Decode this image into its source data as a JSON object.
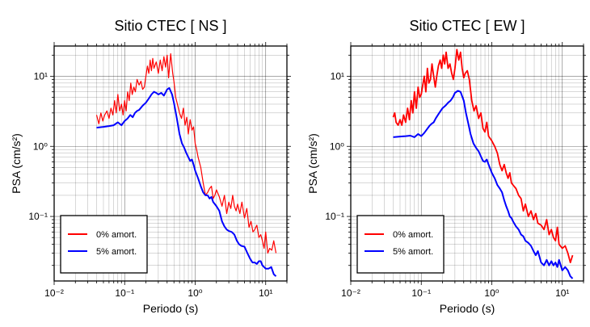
{
  "chart_data": [
    {
      "type": "line",
      "title": "Sitio CTEC [ NS ]",
      "xlabel": "Periodo (s)",
      "ylabel": "PSA (cm/s²)",
      "x_scale": "log",
      "y_scale": "log",
      "xlim": [
        0.01,
        20
      ],
      "ylim": [
        0.012,
        27
      ],
      "grid": true,
      "legend_position": "bottom-left",
      "x_tick_labels": [
        "10⁻²",
        "10⁻¹",
        "10⁰",
        "10¹"
      ],
      "y_tick_labels": [
        "10⁻¹",
        "10⁰",
        "10¹"
      ],
      "series": [
        {
          "name": "0% amort.",
          "color": "#ff0000",
          "x": [
            0.04,
            0.043,
            0.046,
            0.049,
            0.052,
            0.056,
            0.06,
            0.064,
            0.068,
            0.072,
            0.076,
            0.08,
            0.085,
            0.09,
            0.095,
            0.1,
            0.105,
            0.11,
            0.116,
            0.122,
            0.128,
            0.135,
            0.142,
            0.15,
            0.16,
            0.17,
            0.18,
            0.19,
            0.2,
            0.21,
            0.22,
            0.23,
            0.24,
            0.25,
            0.26,
            0.28,
            0.3,
            0.32,
            0.34,
            0.36,
            0.38,
            0.4,
            0.42,
            0.45,
            0.48,
            0.5,
            0.53,
            0.56,
            0.6,
            0.64,
            0.68,
            0.72,
            0.76,
            0.8,
            0.85,
            0.9,
            0.95,
            1.0,
            1.05,
            1.1,
            1.2,
            1.3,
            1.4,
            1.5,
            1.6,
            1.7,
            1.8,
            1.9,
            2.0,
            2.2,
            2.4,
            2.6,
            2.8,
            3.0,
            3.2,
            3.4,
            3.6,
            3.8,
            4.0,
            4.3,
            4.6,
            5.0,
            5.4,
            5.8,
            6.2,
            6.6,
            7.0,
            7.5,
            8.0,
            8.5,
            9.0,
            9.5,
            10.0,
            10.7,
            11.4,
            12.2,
            13.0,
            14.0
          ],
          "y": [
            2.8,
            2.1,
            3.0,
            2.3,
            2.8,
            3.2,
            2.5,
            3.5,
            2.8,
            4.5,
            3.0,
            5.5,
            3.2,
            4.0,
            2.8,
            4.5,
            3.2,
            6.0,
            4.5,
            8.0,
            5.5,
            7.0,
            6.0,
            9.0,
            7.5,
            8.5,
            6.5,
            7.0,
            10.0,
            14.0,
            11.0,
            17.0,
            12.0,
            18.0,
            13.0,
            16.0,
            11.0,
            17.0,
            12.0,
            19.0,
            13.5,
            20.0,
            9.5,
            21.0,
            11.0,
            8.5,
            5.0,
            4.0,
            3.0,
            2.5,
            3.5,
            2.0,
            2.6,
            1.5,
            2.4,
            1.7,
            1.9,
            1.1,
            0.9,
            0.7,
            0.5,
            0.3,
            0.2,
            0.22,
            0.25,
            0.27,
            0.18,
            0.2,
            0.24,
            0.19,
            0.14,
            0.2,
            0.11,
            0.16,
            0.13,
            0.2,
            0.14,
            0.12,
            0.15,
            0.11,
            0.16,
            0.095,
            0.13,
            0.07,
            0.085,
            0.06,
            0.065,
            0.075,
            0.05,
            0.055,
            0.045,
            0.035,
            0.06,
            0.03,
            0.035,
            0.033,
            0.045,
            0.03
          ]
        },
        {
          "name": "5% amort.",
          "color": "#0000ff",
          "x": [
            0.04,
            0.05,
            0.06,
            0.07,
            0.08,
            0.09,
            0.1,
            0.11,
            0.12,
            0.13,
            0.14,
            0.15,
            0.16,
            0.18,
            0.2,
            0.22,
            0.24,
            0.26,
            0.28,
            0.3,
            0.33,
            0.36,
            0.4,
            0.43,
            0.47,
            0.5,
            0.55,
            0.6,
            0.65,
            0.7,
            0.75,
            0.8,
            0.85,
            0.9,
            0.95,
            1.0,
            1.1,
            1.2,
            1.3,
            1.4,
            1.5,
            1.6,
            1.7,
            1.8,
            1.9,
            2.0,
            2.2,
            2.4,
            2.6,
            2.8,
            3.0,
            3.3,
            3.6,
            3.9,
            4.2,
            4.5,
            5.0,
            5.5,
            6.0,
            6.5,
            7.0,
            7.5,
            8.0,
            8.5,
            9.0,
            10.0,
            11.0,
            12.0,
            13.0,
            14.0
          ],
          "y": [
            1.85,
            1.9,
            1.95,
            2.0,
            2.2,
            2.0,
            2.3,
            2.5,
            2.8,
            2.6,
            3.0,
            3.2,
            3.3,
            3.8,
            4.2,
            4.8,
            5.5,
            6.0,
            5.8,
            5.5,
            5.8,
            5.3,
            6.5,
            6.8,
            5.5,
            4.2,
            2.5,
            1.5,
            1.1,
            0.95,
            0.8,
            0.7,
            0.62,
            0.65,
            0.55,
            0.45,
            0.35,
            0.27,
            0.22,
            0.2,
            0.2,
            0.18,
            0.19,
            0.16,
            0.15,
            0.14,
            0.12,
            0.085,
            0.072,
            0.065,
            0.062,
            0.06,
            0.055,
            0.045,
            0.04,
            0.038,
            0.037,
            0.03,
            0.025,
            0.022,
            0.022,
            0.021,
            0.023,
            0.023,
            0.02,
            0.018,
            0.018,
            0.019,
            0.015,
            0.014
          ]
        }
      ]
    },
    {
      "type": "line",
      "title": "Sitio CTEC [ EW ]",
      "xlabel": "Periodo (s)",
      "ylabel": "PSA (cm/s²)",
      "x_scale": "log",
      "y_scale": "log",
      "xlim": [
        0.01,
        20
      ],
      "ylim": [
        0.012,
        27
      ],
      "grid": true,
      "legend_position": "bottom-left",
      "x_tick_labels": [
        "10⁻²",
        "10⁻¹",
        "10⁰",
        "10¹"
      ],
      "y_tick_labels": [
        "10⁻¹",
        "10⁰",
        "10¹"
      ],
      "series": [
        {
          "name": "0% amort.",
          "color": "#ff0000",
          "x": [
            0.04,
            0.042,
            0.044,
            0.047,
            0.05,
            0.053,
            0.056,
            0.06,
            0.064,
            0.068,
            0.072,
            0.076,
            0.08,
            0.085,
            0.09,
            0.095,
            0.1,
            0.105,
            0.11,
            0.116,
            0.122,
            0.128,
            0.135,
            0.142,
            0.15,
            0.158,
            0.166,
            0.175,
            0.185,
            0.195,
            0.205,
            0.215,
            0.225,
            0.24,
            0.255,
            0.27,
            0.285,
            0.3,
            0.32,
            0.34,
            0.36,
            0.38,
            0.4,
            0.42,
            0.45,
            0.48,
            0.52,
            0.56,
            0.6,
            0.65,
            0.7,
            0.75,
            0.8,
            0.85,
            0.9,
            1.0,
            1.1,
            1.2,
            1.3,
            1.4,
            1.5,
            1.6,
            1.7,
            1.8,
            1.9,
            2.0,
            2.2,
            2.4,
            2.6,
            2.8,
            3.0,
            3.3,
            3.6,
            3.9,
            4.2,
            4.5,
            5.0,
            5.5,
            6.0,
            6.5,
            7.0,
            7.5,
            8.0,
            8.5,
            9.0,
            10.0,
            11.0,
            12.0,
            13.0,
            14.0
          ],
          "y": [
            2.6,
            3.0,
            2.2,
            2.0,
            2.4,
            2.0,
            2.8,
            2.2,
            3.5,
            2.4,
            4.5,
            3.0,
            6.0,
            3.5,
            7.0,
            5.0,
            5.5,
            7.5,
            10.0,
            6.0,
            13.0,
            8.0,
            9.0,
            15.0,
            10.0,
            7.0,
            10.0,
            14.0,
            17.0,
            13.0,
            20.0,
            15.0,
            22.0,
            13.0,
            15.0,
            11.0,
            9.0,
            13.0,
            24.0,
            17.0,
            22.0,
            13.0,
            9.5,
            11.0,
            12.0,
            9.0,
            4.5,
            3.2,
            3.8,
            2.5,
            3.0,
            1.8,
            1.6,
            2.2,
            1.4,
            1.2,
            1.0,
            0.8,
            0.55,
            0.45,
            0.55,
            0.42,
            0.35,
            0.42,
            0.3,
            0.28,
            0.25,
            0.2,
            0.18,
            0.12,
            0.15,
            0.1,
            0.12,
            0.09,
            0.11,
            0.08,
            0.075,
            0.065,
            0.09,
            0.055,
            0.065,
            0.05,
            0.045,
            0.07,
            0.04,
            0.035,
            0.038,
            0.03,
            0.022,
            0.028
          ]
        },
        {
          "name": "5% amort.",
          "color": "#0000ff",
          "x": [
            0.04,
            0.05,
            0.06,
            0.07,
            0.08,
            0.09,
            0.1,
            0.11,
            0.12,
            0.13,
            0.14,
            0.15,
            0.16,
            0.18,
            0.2,
            0.22,
            0.24,
            0.26,
            0.28,
            0.3,
            0.33,
            0.36,
            0.4,
            0.43,
            0.47,
            0.5,
            0.55,
            0.6,
            0.65,
            0.7,
            0.75,
            0.8,
            0.85,
            0.9,
            0.95,
            1.0,
            1.1,
            1.2,
            1.3,
            1.4,
            1.5,
            1.6,
            1.7,
            1.8,
            1.9,
            2.0,
            2.2,
            2.4,
            2.6,
            2.8,
            3.0,
            3.3,
            3.6,
            3.9,
            4.2,
            4.5,
            5.0,
            5.5,
            6.0,
            6.5,
            7.0,
            7.5,
            8.0,
            8.5,
            9.0,
            10.0,
            11.0,
            12.0,
            13.0,
            14.0
          ],
          "y": [
            1.35,
            1.38,
            1.4,
            1.42,
            1.35,
            1.5,
            1.4,
            1.55,
            1.75,
            1.95,
            2.1,
            2.2,
            2.5,
            3.0,
            3.5,
            3.8,
            4.2,
            4.5,
            5.0,
            5.8,
            6.2,
            6.0,
            4.5,
            3.0,
            2.0,
            1.5,
            1.1,
            0.95,
            0.85,
            0.72,
            0.62,
            0.6,
            0.65,
            0.55,
            0.48,
            0.42,
            0.35,
            0.28,
            0.25,
            0.22,
            0.17,
            0.14,
            0.12,
            0.1,
            0.095,
            0.085,
            0.072,
            0.065,
            0.055,
            0.052,
            0.045,
            0.042,
            0.038,
            0.032,
            0.028,
            0.032,
            0.022,
            0.02,
            0.024,
            0.02,
            0.023,
            0.02,
            0.022,
            0.019,
            0.024,
            0.017,
            0.019,
            0.017,
            0.014,
            0.013
          ]
        }
      ]
    }
  ]
}
